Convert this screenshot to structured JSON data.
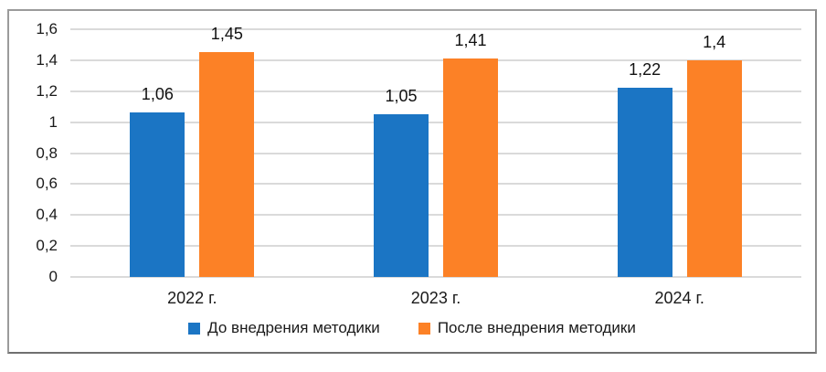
{
  "chart_data": {
    "type": "bar",
    "title": "",
    "categories": [
      "2022 г.",
      "2023 г.",
      "2024 г."
    ],
    "series": [
      {
        "name": "До внедрения методики",
        "color": "#1b75c4",
        "values": [
          1.06,
          1.05,
          1.22
        ],
        "value_labels": [
          "1,06",
          "1,05",
          "1,22"
        ]
      },
      {
        "name": "После внедрения методики",
        "color": "#fc8126",
        "values": [
          1.45,
          1.41,
          1.4
        ],
        "value_labels": [
          "1,45",
          "1,41",
          "1,4"
        ]
      }
    ],
    "ylim": [
      0,
      1.6
    ],
    "yticks": [
      {
        "value": 0,
        "label": "0"
      },
      {
        "value": 0.2,
        "label": "0,2"
      },
      {
        "value": 0.4,
        "label": "0,4"
      },
      {
        "value": 0.6,
        "label": "0,6"
      },
      {
        "value": 0.8,
        "label": "0,8"
      },
      {
        "value": 1,
        "label": "1"
      },
      {
        "value": 1.2,
        "label": "1,2"
      },
      {
        "value": 1.4,
        "label": "1,4"
      },
      {
        "value": 1.6,
        "label": "1,6"
      }
    ],
    "grid": true,
    "legend_position": "bottom",
    "colors": {
      "grid": "#dadada",
      "frame_border": "#9b9b9b",
      "text": "#1a1a1a",
      "background": "#ffffff"
    }
  }
}
